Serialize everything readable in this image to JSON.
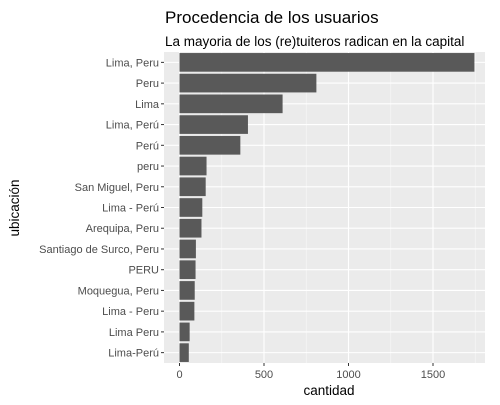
{
  "chart_data": {
    "type": "bar",
    "orientation": "horizontal",
    "title": "Procedencia de los usuarios",
    "subtitle": "La mayoria de los (re)tuiteros radican en la capital",
    "xlabel": "cantidad",
    "ylabel": "ubicación",
    "xlim": [
      0,
      1800
    ],
    "x_ticks": [
      0,
      500,
      1000,
      1500
    ],
    "grid": true,
    "bar_color": "#595959",
    "panel_color": "#ebebeb",
    "categories": [
      "Lima, Peru",
      "Peru",
      "Lima",
      "Lima, Perú",
      "Perú",
      "peru",
      "San Miguel, Peru",
      "Lima - Perú",
      "Arequipa, Peru",
      "Santiago de Surco, Peru",
      "PERU",
      "Moquegua, Peru",
      "Lima - Peru",
      "Lima Peru",
      "Lima-Perú"
    ],
    "values": [
      1745,
      810,
      610,
      405,
      360,
      160,
      155,
      135,
      130,
      97,
      95,
      90,
      88,
      60,
      55
    ]
  }
}
